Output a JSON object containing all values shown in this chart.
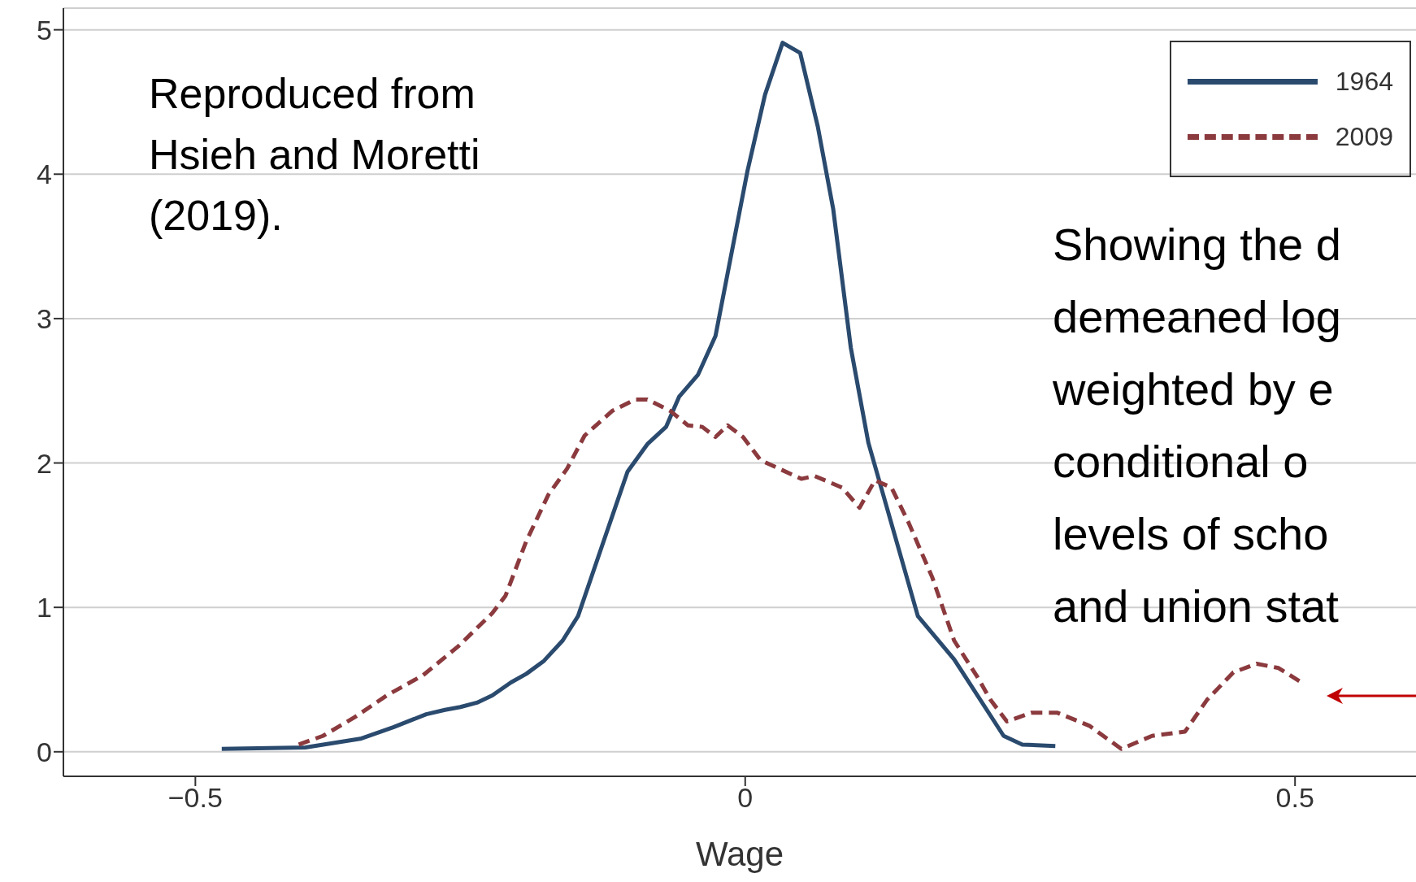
{
  "chart_data": {
    "type": "line",
    "xlabel": "Wage",
    "xlim": [
      -0.62,
      0.61
    ],
    "ylim": [
      -0.17,
      5.15
    ],
    "xticks": [
      {
        "value": -0.5,
        "label": "−0.5"
      },
      0,
      0.5
    ],
    "yticks": [
      0,
      1,
      2,
      3,
      4,
      5
    ],
    "grid": "y",
    "legend": "top right",
    "marker": "none",
    "annotations": [
      "Reproduced from\nHsieh and Moretti\n(2019).",
      "Showing the d\ndemeaned log\nweighted by e\nconditional o\nlevels of scho\nand union stat"
    ],
    "series": [
      {
        "name": "1964",
        "color": "#2a4a6e",
        "line_style": "solid",
        "x": [
          -0.476,
          -0.4,
          -0.35,
          -0.32,
          -0.29,
          -0.273,
          -0.259,
          -0.244,
          -0.23,
          -0.213,
          -0.199,
          -0.183,
          -0.166,
          -0.152,
          -0.13,
          -0.107,
          -0.089,
          -0.072,
          -0.06,
          -0.043,
          -0.027,
          0.002,
          0.018,
          0.034,
          0.05,
          0.066,
          0.08,
          0.096,
          0.112,
          0.157,
          0.19,
          0.235,
          0.252,
          0.282
        ],
        "values": [
          0.02,
          0.03,
          0.09,
          0.17,
          0.26,
          0.29,
          0.31,
          0.34,
          0.39,
          0.48,
          0.54,
          0.63,
          0.77,
          0.94,
          1.43,
          1.94,
          2.13,
          2.25,
          2.46,
          2.61,
          2.88,
          4.02,
          4.55,
          4.91,
          4.84,
          4.33,
          3.76,
          2.8,
          2.14,
          0.94,
          0.64,
          0.11,
          0.05,
          0.04
        ]
      },
      {
        "name": "2009",
        "color": "#8b3a3e",
        "line_style": "dashed",
        "x": [
          -0.406,
          -0.384,
          -0.355,
          -0.326,
          -0.293,
          -0.261,
          -0.23,
          -0.218,
          -0.199,
          -0.179,
          -0.162,
          -0.146,
          -0.121,
          -0.1,
          -0.089,
          -0.068,
          -0.052,
          -0.039,
          -0.027,
          -0.016,
          -0.002,
          0.014,
          0.031,
          0.051,
          0.063,
          0.088,
          0.104,
          0.118,
          0.133,
          0.149,
          0.17,
          0.19,
          0.211,
          0.223,
          0.238,
          0.26,
          0.284,
          0.313,
          0.342,
          0.37,
          0.4,
          0.42,
          0.444,
          0.465,
          0.485,
          0.506
        ],
        "values": [
          0.05,
          0.11,
          0.24,
          0.39,
          0.53,
          0.73,
          0.96,
          1.08,
          1.46,
          1.78,
          1.96,
          2.19,
          2.36,
          2.44,
          2.44,
          2.36,
          2.26,
          2.25,
          2.18,
          2.26,
          2.18,
          2.02,
          1.96,
          1.89,
          1.91,
          1.83,
          1.69,
          1.88,
          1.83,
          1.58,
          1.21,
          0.77,
          0.52,
          0.36,
          0.21,
          0.27,
          0.27,
          0.18,
          0.02,
          0.11,
          0.14,
          0.36,
          0.55,
          0.61,
          0.58,
          0.48
        ]
      }
    ]
  }
}
